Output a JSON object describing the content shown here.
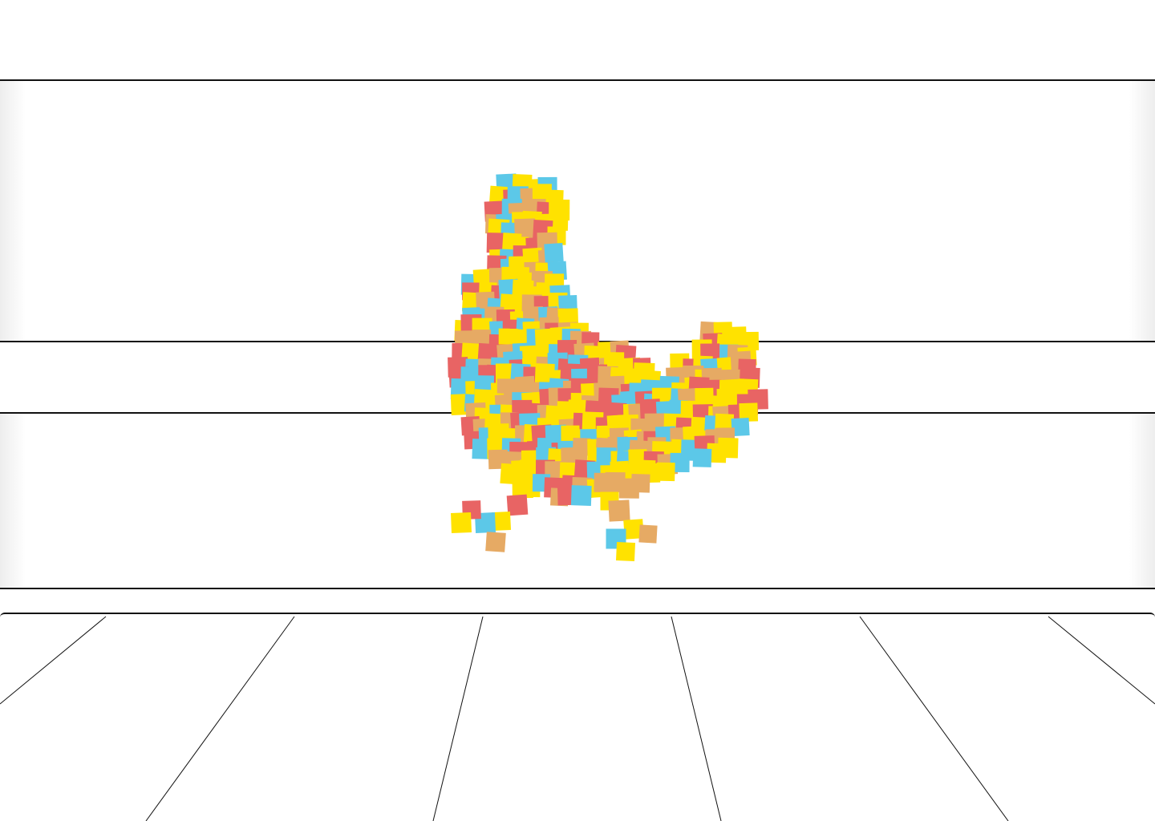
{
  "scene": {
    "subject": "chicken-mosaic",
    "colors": {
      "red": "#e86464",
      "blue": "#5cc8e8",
      "yellow": "#ffe200",
      "orange": "#e6aa64",
      "line": "#111111",
      "wall": "#ffffff"
    }
  }
}
